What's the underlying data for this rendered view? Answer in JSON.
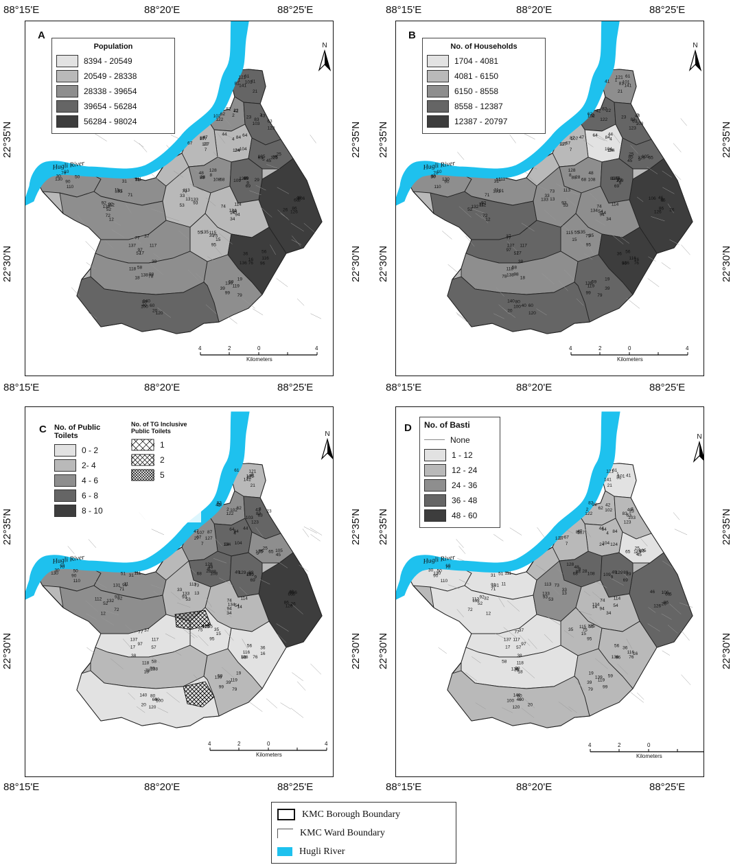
{
  "longitude_ticks": [
    "88°15'E",
    "88°20'E",
    "88°25'E"
  ],
  "latitude_ticks": [
    "22°35'N",
    "22°30'N"
  ],
  "river_label": "Hugli River",
  "north_label": "N",
  "scale": {
    "labels": [
      "4",
      "2",
      "0",
      "4"
    ],
    "unit": "Kilometers"
  },
  "colors": {
    "river": "#1ec1ee",
    "class1": "#e2e2e2",
    "class2": "#b9b9b9",
    "class3": "#8e8e8e",
    "class4": "#656565",
    "class5": "#3d3d3d"
  },
  "panels": [
    {
      "label": "A",
      "legend_title": "Population",
      "legend_items": [
        "8394 - 20549",
        "20549 - 28338",
        "28338 - 39654",
        "39654 - 56284",
        "56284 - 98024"
      ]
    },
    {
      "label": "B",
      "legend_title": "No. of Households",
      "legend_items": [
        "1704 - 4081",
        "4081 - 6150",
        "6150 - 8558",
        "8558 - 12387",
        "12387 - 20797"
      ]
    },
    {
      "label": "C",
      "legend_title": "No. of Public Toilets",
      "legend_items": [
        "0 - 2",
        "2- 4",
        "4 - 6",
        "6 - 8",
        "8 - 10"
      ],
      "legend2_title": "No. of TG Inclusive Public Toilets",
      "legend2_items": [
        "1",
        "2",
        "5"
      ]
    },
    {
      "label": "D",
      "legend_title": "No. of Basti",
      "legend_items": [
        "None",
        "1 - 12",
        "12 - 24",
        "24 - 36",
        "36 - 48",
        "48 - 60"
      ]
    }
  ],
  "map_legend": {
    "items": [
      "KMC Borough Boundary",
      "KMC Ward Boundary",
      "Hugli River"
    ]
  },
  "ward_labels": [
    "1",
    "2",
    "3",
    "4",
    "5",
    "6",
    "7",
    "8",
    "9",
    "10",
    "11",
    "12",
    "13",
    "14",
    "15",
    "16",
    "17",
    "18",
    "19",
    "20",
    "21",
    "22",
    "23",
    "24",
    "25",
    "26",
    "27",
    "28",
    "29",
    "30",
    "31",
    "32",
    "33",
    "34",
    "35",
    "36",
    "37",
    "38",
    "39",
    "40",
    "41",
    "42",
    "43",
    "44",
    "45",
    "46",
    "47",
    "48",
    "49",
    "50",
    "51",
    "52",
    "53",
    "54",
    "55",
    "56",
    "57",
    "58",
    "59",
    "60",
    "61",
    "62",
    "63",
    "64",
    "65",
    "66",
    "67",
    "68",
    "69",
    "70",
    "71",
    "72",
    "73",
    "74",
    "75",
    "76",
    "77",
    "78",
    "79",
    "80",
    "81",
    "82",
    "83",
    "84",
    "85",
    "86",
    "87",
    "88",
    "89",
    "90",
    "91",
    "92",
    "93",
    "94",
    "95",
    "96",
    "97",
    "98",
    "99",
    "100",
    "101",
    "102",
    "103",
    "104",
    "105",
    "106",
    "107",
    "108",
    "109",
    "110",
    "111",
    "112",
    "113",
    "114",
    "115",
    "116",
    "117",
    "118",
    "119",
    "120",
    "121",
    "122",
    "123",
    "124",
    "125",
    "126",
    "127",
    "128",
    "129",
    "130",
    "131",
    "132",
    "133",
    "134",
    "135",
    "136",
    "137",
    "138",
    "139",
    "140",
    "141"
  ]
}
